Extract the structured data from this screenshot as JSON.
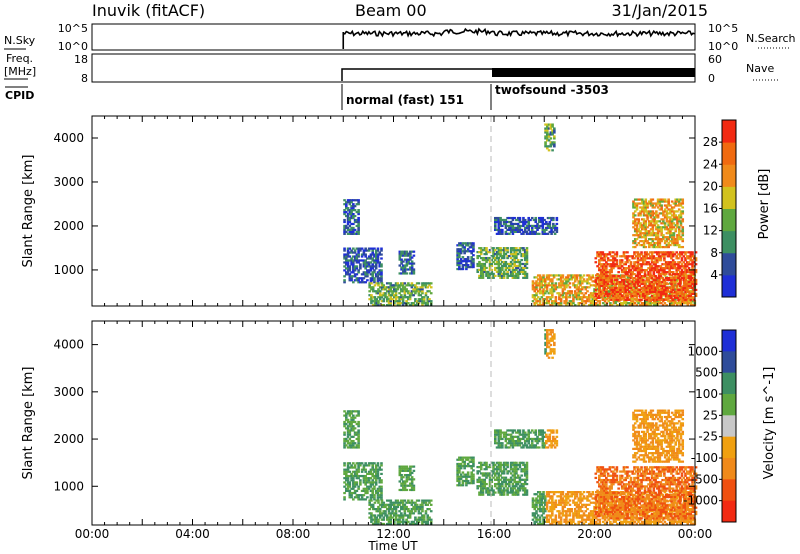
{
  "header": {
    "title": "Inuvik (fitACF)",
    "beam": "Beam 00",
    "date": "31/Jan/2015"
  },
  "sky_panel": {
    "left_label": "N.Sky",
    "right_label": "N.Search",
    "left_ticks": [
      "10^5",
      "10^0"
    ],
    "right_ticks": [
      "10^5",
      "10^0"
    ]
  },
  "freq_panel": {
    "left_label_line1": "Freq.",
    "left_label_line2": "[MHz]",
    "right_label": "Nave",
    "left_ticks": [
      "18",
      "8"
    ],
    "right_ticks": [
      "60",
      "0"
    ]
  },
  "cpid": {
    "label": "CPID",
    "modes": [
      {
        "name": "normal (fast) 151",
        "start": "10:00"
      },
      {
        "name": "twofsound -3503",
        "start": "16:00"
      }
    ]
  },
  "time_axis": {
    "label": "Time UT",
    "ticks": [
      "00:00",
      "04:00",
      "08:00",
      "12:00",
      "16:00",
      "20:00",
      "00:00"
    ]
  },
  "colors": {
    "blue": "#1f2fd6",
    "navy": "#2f4c9a",
    "teal": "#3d8f62",
    "green": "#5fa83f",
    "yellow": "#d2c21e",
    "orange": "#f08a1a",
    "red": "#f22a12",
    "gray": "#c8c8c8"
  },
  "chart_data": [
    {
      "type": "heatmap",
      "name": "power",
      "ylabel": "Slant Range [km]",
      "yticks": [
        "1000",
        "2000",
        "3000",
        "4000"
      ],
      "colorbar_label": "Power [dB]",
      "colorbar_ticks": [
        "4",
        "8",
        "12",
        "16",
        "20",
        "24",
        "28"
      ],
      "colorbar_colors": [
        "#1f2fd6",
        "#2f4c9a",
        "#3d8f62",
        "#5fa83f",
        "#d2c21e",
        "#f08a1a",
        "#f06a10",
        "#f22a12"
      ],
      "ylim": [
        180,
        4500
      ],
      "xlim_hours": [
        0,
        24
      ]
    },
    {
      "type": "heatmap",
      "name": "velocity",
      "ylabel": "Slant Range [km]",
      "yticks": [
        "1000",
        "2000",
        "3000",
        "4000"
      ],
      "colorbar_label": "Velocity [m s^-1]",
      "colorbar_ticks": [
        "1000",
        "500",
        "100",
        "25",
        "-25",
        "-100",
        "-500",
        "-1000"
      ],
      "colorbar_colors": [
        "#1f2fd6",
        "#2f4c9a",
        "#3d8f62",
        "#5fa83f",
        "#c8c8c8",
        "#f0a010",
        "#f08a1a",
        "#f05010",
        "#f22a12"
      ],
      "ylim": [
        180,
        4500
      ],
      "xlim_hours": [
        0,
        24
      ]
    }
  ]
}
